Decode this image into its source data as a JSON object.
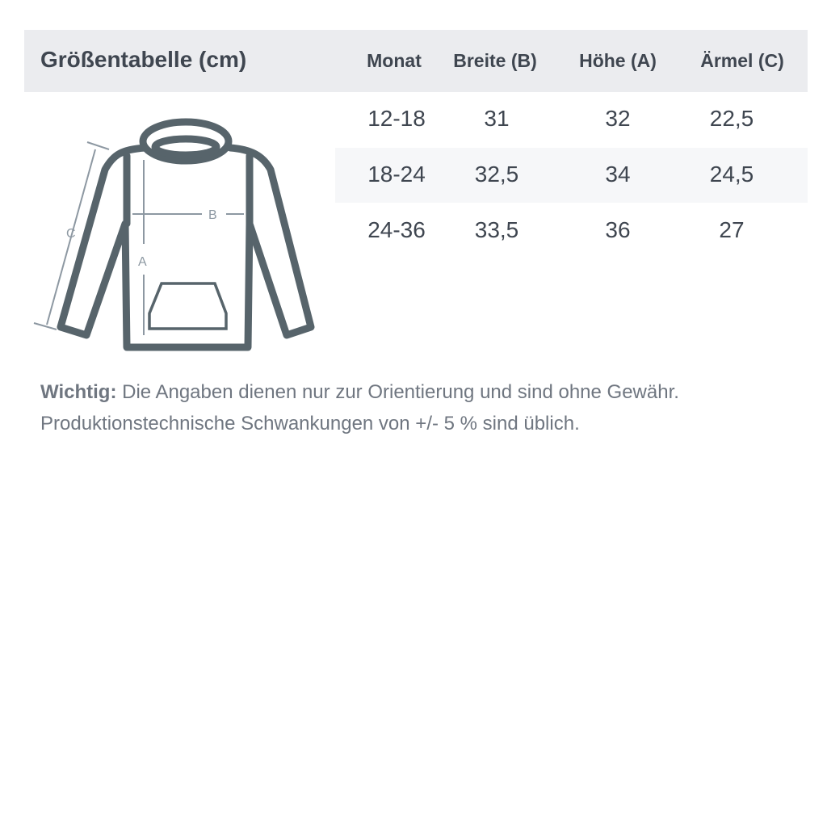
{
  "title": "Größentabelle (cm)",
  "columns": [
    "Monat",
    "Breite (B)",
    "Höhe (A)",
    "Ärmel (C)"
  ],
  "rows": [
    [
      "12-18",
      "31",
      "32",
      "22,5"
    ],
    [
      "18-24",
      "32,5",
      "34",
      "24,5"
    ],
    [
      "24-36",
      "33,5",
      "36",
      "27"
    ]
  ],
  "diagram": {
    "labels": {
      "a": "A",
      "b": "B",
      "c": "C"
    }
  },
  "note": {
    "bold": "Wichtig:",
    "line1": " Die Angaben dienen nur zur Orientierung und sind ohne Gewähr.",
    "line2": "Produktionstechnische Schwankungen von +/- 5 % sind üblich."
  },
  "colors": {
    "header_bg": "#ebecef",
    "text": "#3f4650",
    "hoodie": "#57646b",
    "arrows": "#8d98a2"
  }
}
